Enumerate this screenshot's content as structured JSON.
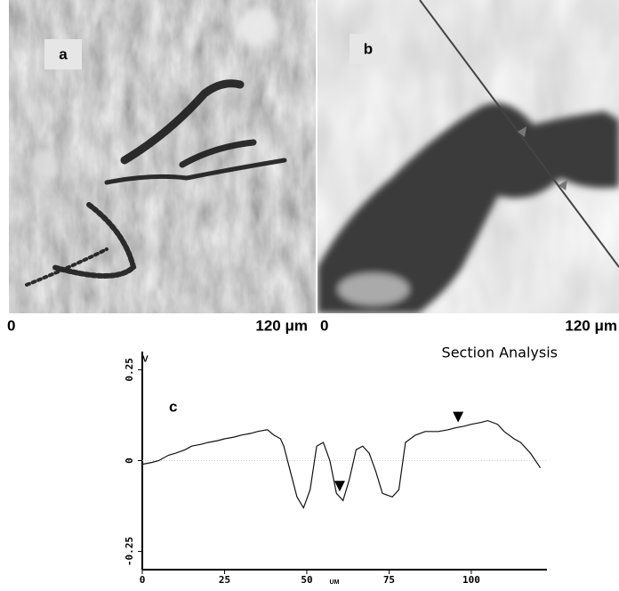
{
  "panels": [
    {
      "label": "a",
      "x_start": "0",
      "x_end": "120 μm"
    },
    {
      "label": "b",
      "x_start": "0",
      "x_end": "120 μm"
    }
  ],
  "chart_data": {
    "type": "line",
    "title": "Section Analysis",
    "panel_label": "c",
    "ylabel": "V",
    "xlabel": "UM",
    "xlim": [
      0,
      123
    ],
    "xticks": [
      0,
      25,
      50,
      75,
      100
    ],
    "ylim": [
      -0.3,
      0.3
    ],
    "yticks": [
      -0.25,
      0,
      0.25
    ],
    "color": "#111111",
    "x": [
      0,
      3,
      5,
      8,
      10,
      13,
      15,
      18,
      20,
      23,
      25,
      28,
      30,
      33,
      35,
      38,
      40,
      42,
      43,
      45,
      47,
      49,
      51,
      53,
      55,
      57,
      59,
      61,
      63,
      65,
      67,
      69,
      71,
      73,
      76,
      78,
      80,
      83,
      86,
      90,
      93,
      95,
      98,
      100,
      103,
      105,
      108,
      110,
      113,
      115,
      118,
      121
    ],
    "values": [
      -0.01,
      -0.005,
      0.0,
      0.015,
      0.02,
      0.03,
      0.04,
      0.045,
      0.05,
      0.055,
      0.06,
      0.065,
      0.07,
      0.075,
      0.08,
      0.085,
      0.07,
      0.06,
      0.04,
      -0.03,
      -0.1,
      -0.13,
      -0.08,
      0.04,
      0.05,
      0.0,
      -0.09,
      -0.11,
      -0.05,
      0.03,
      0.04,
      0.02,
      -0.03,
      -0.09,
      -0.1,
      -0.08,
      0.05,
      0.07,
      0.08,
      0.08,
      0.085,
      0.09,
      0.095,
      0.1,
      0.105,
      0.11,
      0.1,
      0.08,
      0.06,
      0.05,
      0.02,
      -0.02
    ],
    "markers": [
      {
        "x": 60,
        "y": -0.09
      },
      {
        "x": 96,
        "y": 0.1
      }
    ]
  }
}
